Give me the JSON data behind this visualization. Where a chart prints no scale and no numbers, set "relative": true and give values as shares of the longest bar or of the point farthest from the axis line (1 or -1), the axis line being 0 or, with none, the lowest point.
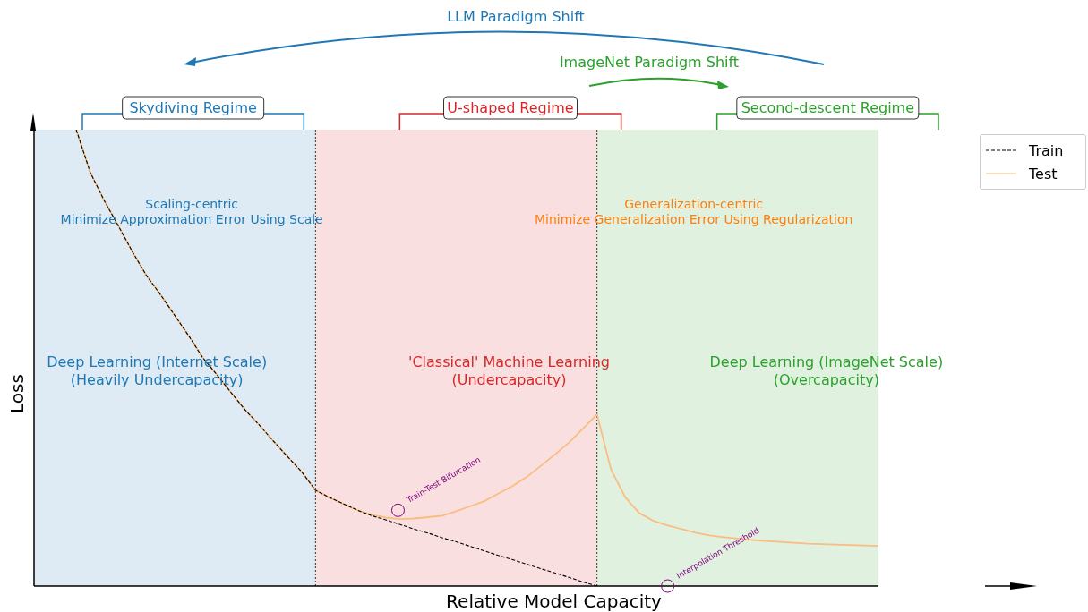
{
  "chart_data": {
    "type": "line",
    "relative": true,
    "xlabel": "Relative Model Capacity",
    "ylabel": "Loss",
    "legend": "top right",
    "categories": [
      null,
      null,
      null,
      null,
      null,
      null,
      null,
      null,
      null,
      null,
      null,
      null,
      null,
      null,
      null,
      null,
      null,
      null,
      null,
      null,
      null,
      null,
      null,
      null,
      null,
      null,
      null,
      null,
      null,
      null,
      null,
      null,
      null,
      null,
      null,
      null,
      null,
      null,
      null,
      null,
      null,
      null,
      null,
      null,
      null,
      null,
      null,
      null,
      null,
      null,
      null,
      null,
      null,
      null,
      null,
      null,
      null,
      null,
      null,
      null,
      null
    ],
    "series": [
      {
        "name": "Train",
        "color": "#000000",
        "line_style": "dashed",
        "values": [
          null,
          null,
          null,
          1.0,
          0.906,
          0.844,
          0.789,
          0.732,
          0.68,
          0.638,
          0.593,
          0.548,
          0.5,
          0.463,
          0.424,
          0.386,
          0.353,
          0.318,
          0.284,
          0.251,
          0.21,
          0.194,
          0.18,
          0.166,
          0.154,
          0.145,
          0.135,
          0.125,
          0.116,
          0.106,
          0.097,
          0.087,
          0.077,
          0.067,
          0.058,
          0.048,
          0.038,
          0.029,
          0.019,
          0.009,
          0,
          null,
          null,
          null,
          null,
          null,
          null,
          null,
          null,
          null,
          null,
          null,
          null,
          null,
          null,
          null,
          null,
          null,
          null,
          null,
          null
        ]
      },
      {
        "name": "Test",
        "color": "#f9bd80",
        "line_style": "solid",
        "values": [
          null,
          null,
          null,
          1.0,
          0.906,
          0.844,
          0.789,
          0.732,
          0.68,
          0.638,
          0.593,
          0.548,
          0.5,
          0.463,
          0.424,
          0.386,
          0.353,
          0.318,
          0.284,
          0.251,
          0.21,
          0.194,
          0.18,
          0.166,
          0.156,
          0.15,
          0.147,
          0.148,
          0.151,
          0.154,
          0.164,
          0.175,
          0.186,
          0.203,
          0.219,
          0.239,
          0.263,
          0.288,
          0.314,
          0.345,
          0.376,
          0.255,
          0.195,
          0.16,
          0.143,
          0.133,
          0.125,
          0.117,
          0.111,
          0.107,
          0.104,
          0.101,
          0.099,
          0.097,
          0.095,
          0.093,
          0.092,
          0.091,
          0.09,
          0.089,
          0.088
        ]
      }
    ],
    "annotations": [
      "Scaling-centric\nMinimize Approximation Error Using Scale",
      "Generalization-centric\nMinimize Generalization Error Using Regularization",
      "Skydiving Regime",
      "U-shaped Regime",
      "Second-descent Regime",
      "LLM Paradigm Shift",
      "ImageNet Paradigm Shift",
      "Train-Test Bifurcation",
      "Interpolation Threshold",
      "Deep Learning (Internet Scale)\n(Heavily Undercapacity)",
      "'Classical' Machine Learning\n(Undercapacity)",
      "Deep Learning (ImageNet Scale)\n(Overcapacity)"
    ]
  }
}
